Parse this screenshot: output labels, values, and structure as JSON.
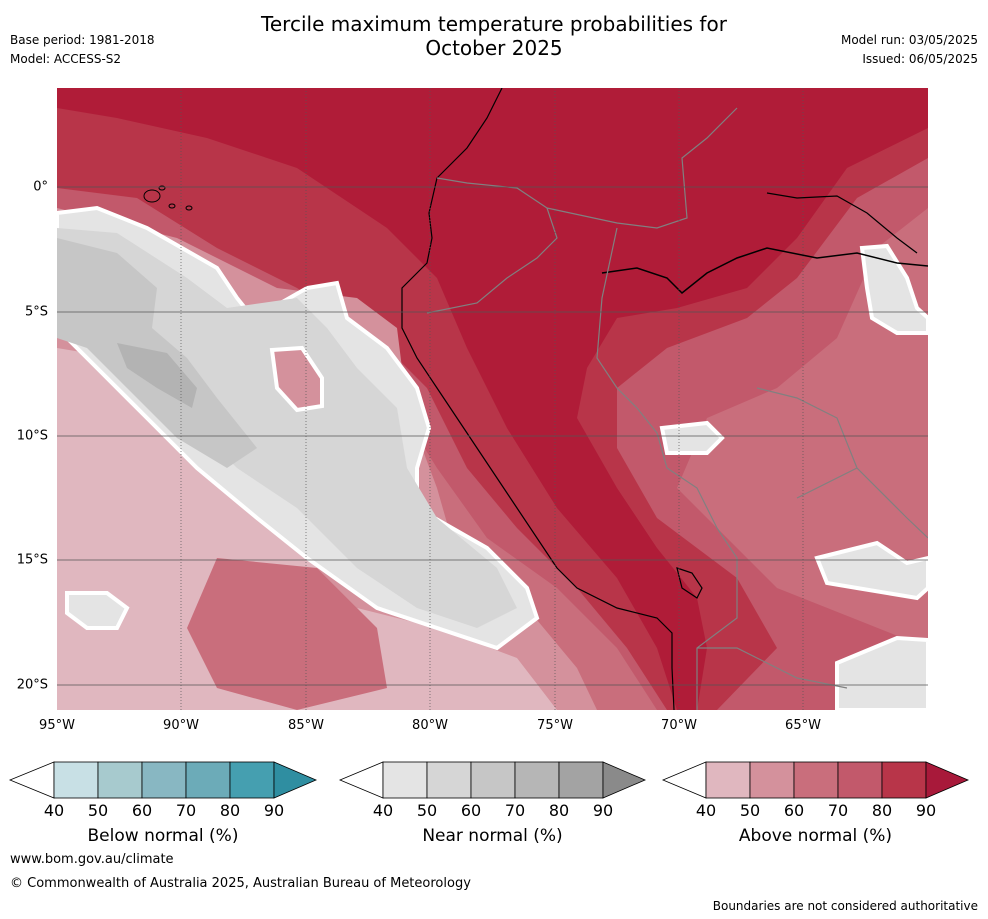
{
  "header": {
    "title_line1": "Tercile maximum temperature probabilities for",
    "title_line2": "October 2025",
    "base_period": "Base period: 1981-2018",
    "model": "Model: ACCESS-S2",
    "model_run": "Model run: 03/05/2025",
    "issued": "Issued: 06/05/2025"
  },
  "map": {
    "x_ticks": [
      "95°W",
      "90°W",
      "85°W",
      "80°W",
      "75°W",
      "70°W",
      "65°W"
    ],
    "y_ticks": [
      "0°",
      "5°S",
      "10°S",
      "15°S",
      "20°S"
    ],
    "colors": {
      "above_40_50": "#e0b7bf",
      "above_50_60": "#d4919c",
      "above_60_70": "#c96e7c",
      "above_70_80": "#c2596b",
      "above_80_90": "#b83549",
      "above_90": "#b01c38",
      "near_40_50": "#e4e4e4",
      "near_50_60": "#d6d6d6",
      "near_60_70": "#c6c6c6",
      "near_70_80": "#b3b3b3",
      "near_90": "#8a8a8a"
    }
  },
  "colorbars": [
    {
      "label": "Below normal (%)",
      "ticks": [
        "40",
        "50",
        "60",
        "70",
        "80",
        "90"
      ],
      "colors": [
        "#ffffff",
        "#c8e0e5",
        "#a7cace",
        "#88b7c2",
        "#6cabb8",
        "#459fb0",
        "#2f8ea1"
      ]
    },
    {
      "label": "Near normal (%)",
      "ticks": [
        "40",
        "50",
        "60",
        "70",
        "80",
        "90"
      ],
      "colors": [
        "#ffffff",
        "#e4e4e4",
        "#d6d6d6",
        "#c6c6c6",
        "#b6b6b6",
        "#a3a3a3",
        "#8a8a8a"
      ]
    },
    {
      "label": "Above normal (%)",
      "ticks": [
        "40",
        "50",
        "60",
        "70",
        "80",
        "90"
      ],
      "colors": [
        "#ffffff",
        "#e0b7bf",
        "#d4919c",
        "#c96e7c",
        "#c2596b",
        "#b83549",
        "#a8193a"
      ]
    }
  ],
  "footer": {
    "url": "www.bom.gov.au/climate",
    "copyright": "© Commonwealth of Australia 2025, Australian Bureau of Meteorology",
    "note": "Boundaries are not considered authoritative"
  }
}
